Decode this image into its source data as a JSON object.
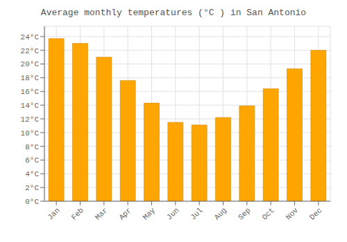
{
  "chart_data": {
    "type": "bar",
    "title": "Average monthly temperatures (°C ) in San Antonio",
    "categories": [
      "Jan",
      "Feb",
      "Mar",
      "Apr",
      "May",
      "Jun",
      "Jul",
      "Aug",
      "Sep",
      "Oct",
      "Nov",
      "Dec"
    ],
    "values": [
      23.7,
      23.0,
      21.0,
      17.6,
      14.3,
      11.5,
      11.1,
      12.2,
      13.9,
      16.4,
      19.3,
      22.0
    ],
    "color": "#FFA500",
    "ylim": [
      0,
      25.5
    ],
    "yticks": [
      {
        "value": 0,
        "label": "0°C"
      },
      {
        "value": 2,
        "label": "2°C"
      },
      {
        "value": 4,
        "label": "4°C"
      },
      {
        "value": 6,
        "label": "6°C"
      },
      {
        "value": 8,
        "label": "8°C"
      },
      {
        "value": 10,
        "label": "10°C"
      },
      {
        "value": 12,
        "label": "12°C"
      },
      {
        "value": 14,
        "label": "14°C"
      },
      {
        "value": 16,
        "label": "16°C"
      },
      {
        "value": 18,
        "label": "18°C"
      },
      {
        "value": 20,
        "label": "20°C"
      },
      {
        "value": 22,
        "label": "22°C"
      },
      {
        "value": 24,
        "label": "24°C"
      }
    ],
    "grid": true
  }
}
